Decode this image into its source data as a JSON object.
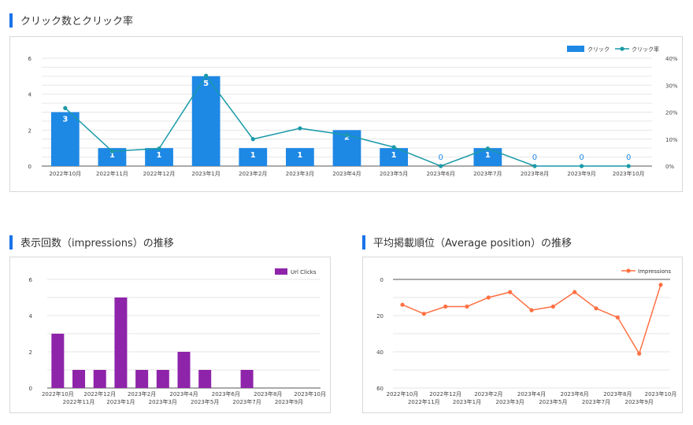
{
  "sections": {
    "top_title": "クリック数とクリック率",
    "bottom_left_title": "表示回数（impressions）の推移",
    "bottom_right_title": "平均掲載順位（Average position）の推移"
  },
  "colors": {
    "accent": "#1a73e8",
    "bar_blue": "#1e88e5",
    "line_teal": "#1a9aa8",
    "bar_purple": "#8e24aa",
    "line_orange": "#ff7043"
  },
  "chart_data": [
    {
      "type": "bar",
      "categories": [
        "2022年10月",
        "2022年11月",
        "2022年12月",
        "2023年1月",
        "2023年2月",
        "2023年3月",
        "2023年4月",
        "2023年5月",
        "2023年6月",
        "2023年7月",
        "2023年8月",
        "2023年9月",
        "2023年10月"
      ],
      "series": [
        {
          "name": "クリック",
          "type": "bar",
          "axis": "left",
          "values": [
            3,
            1,
            1,
            5,
            1,
            1,
            2,
            1,
            0,
            1,
            0,
            0,
            0
          ]
        },
        {
          "name": "クリック率",
          "type": "line",
          "axis": "right",
          "values": [
            21.5,
            5.5,
            6.5,
            33.5,
            10,
            14,
            11.5,
            7,
            0,
            6.5,
            0,
            0,
            0
          ]
        }
      ],
      "left_ticks": [
        "0",
        "2",
        "4",
        "6"
      ],
      "right_ticks": [
        "0%",
        "10%",
        "20%",
        "30%",
        "40%"
      ],
      "ylim_left": [
        0,
        6
      ],
      "ylim_right": [
        0,
        40
      ],
      "legend": "top-right",
      "data_labels": true
    },
    {
      "type": "bar",
      "categories": [
        "2022年10月",
        "2022年11月",
        "2022年12月",
        "2023年1月",
        "2023年2月",
        "2023年3月",
        "2023年4月",
        "2023年5月",
        "2023年6月",
        "2023年7月",
        "2023年8月",
        "2023年9月",
        "2023年10月"
      ],
      "series": [
        {
          "name": "Url Clicks",
          "values": [
            3,
            1,
            1,
            5,
            1,
            1,
            2,
            1,
            0,
            1,
            0,
            0,
            0
          ]
        }
      ],
      "y_ticks": [
        "0",
        "2",
        "4",
        "6"
      ],
      "ylim": [
        0,
        6
      ],
      "legend": "top-right"
    },
    {
      "type": "line",
      "categories": [
        "2022年10月",
        "2022年11月",
        "2022年12月",
        "2023年1月",
        "2023年2月",
        "2023年3月",
        "2023年4月",
        "2023年5月",
        "2023年6月",
        "2023年7月",
        "2023年8月",
        "2023年9月",
        "2023年10月"
      ],
      "series": [
        {
          "name": "Impressions",
          "values": [
            14,
            19,
            15,
            15,
            10,
            7,
            17,
            15,
            7,
            16,
            21,
            41,
            3
          ]
        }
      ],
      "y_ticks": [
        "0",
        "20",
        "40",
        "60"
      ],
      "ylim": [
        0,
        60
      ],
      "y_reversed": true,
      "legend": "top-right"
    }
  ]
}
